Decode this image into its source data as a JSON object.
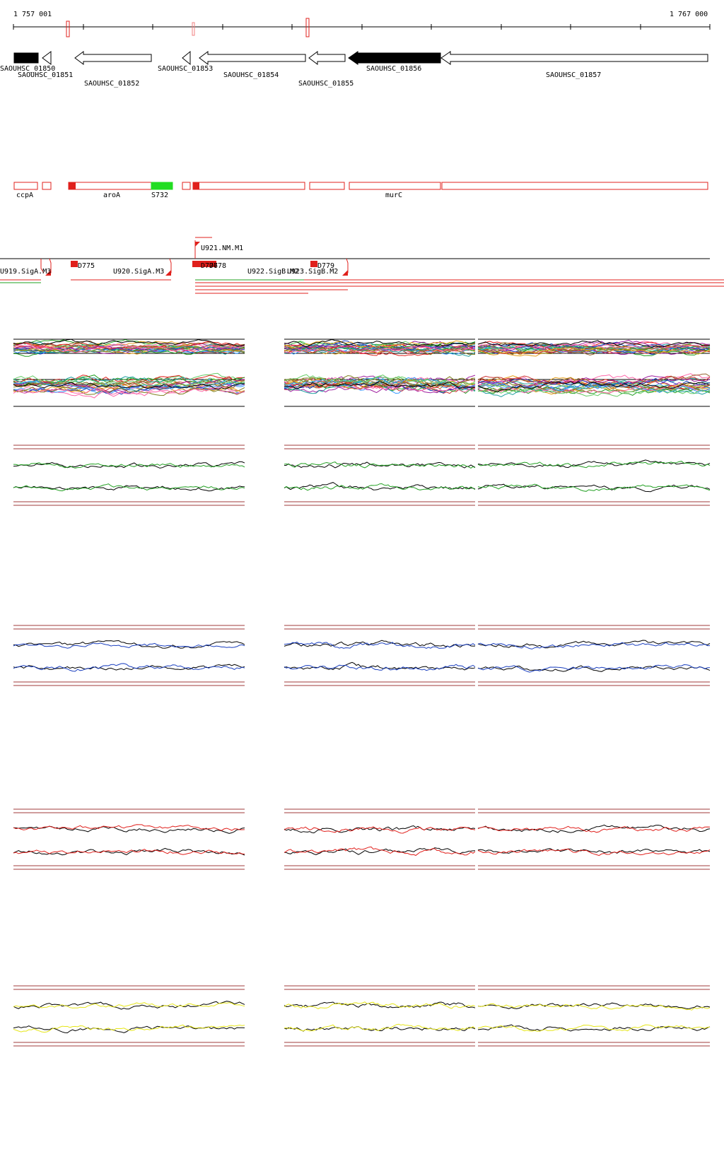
{
  "ruler": {
    "start_label": "1 757 001",
    "end_label": "1 767 000"
  },
  "genes": [
    {
      "label": "SAOUHSC_01850",
      "strand": "-",
      "filled": true
    },
    {
      "label": "SAOUHSC_01851",
      "strand": "-",
      "filled": false
    },
    {
      "label": "SAOUHSC_01852",
      "strand": "-",
      "filled": false
    },
    {
      "label": "SAOUHSC_01853",
      "strand": "-",
      "filled": false
    },
    {
      "label": "SAOUHSC_01854",
      "strand": "-",
      "filled": false
    },
    {
      "label": "SAOUHSC_01855",
      "strand": "-",
      "filled": false
    },
    {
      "label": "SAOUHSC_01856",
      "strand": "-",
      "filled": true
    },
    {
      "label": "SAOUHSC_01857",
      "strand": "-",
      "filled": false
    }
  ],
  "annotation_labels": [
    "ccpA",
    "aroA",
    "S732",
    "murC"
  ],
  "promoters": [
    {
      "label": "U919.SigA.M3"
    },
    {
      "label": "D775"
    },
    {
      "label": "U920.SigA.M3"
    },
    {
      "label": "U921.NM.M1"
    },
    {
      "label": "D776"
    },
    {
      "label": "D778"
    },
    {
      "label": "U922.SigB.M2"
    },
    {
      "label": "U923.SigB.M2"
    },
    {
      "label": "D779"
    }
  ],
  "colors": {
    "gene_outline": "#000000",
    "annotation_outline": "#e0201c",
    "annotation_highlight": "#22dd22",
    "promoter": "#e0201c",
    "threshold_line": "#a23b3b",
    "panel_green": "#22a022",
    "panel_blue": "#1a3fbf",
    "panel_red": "#e0201c",
    "panel_yellow": "#e6e61a"
  },
  "expression_panels": [
    {
      "name": "multi-condition",
      "color": "multi"
    },
    {
      "name": "green-condition",
      "color": "#22a022"
    },
    {
      "name": "blue-condition",
      "color": "#1a3fbf"
    },
    {
      "name": "red-condition",
      "color": "#e0201c"
    },
    {
      "name": "yellow-condition",
      "color": "#e6e61a"
    }
  ]
}
